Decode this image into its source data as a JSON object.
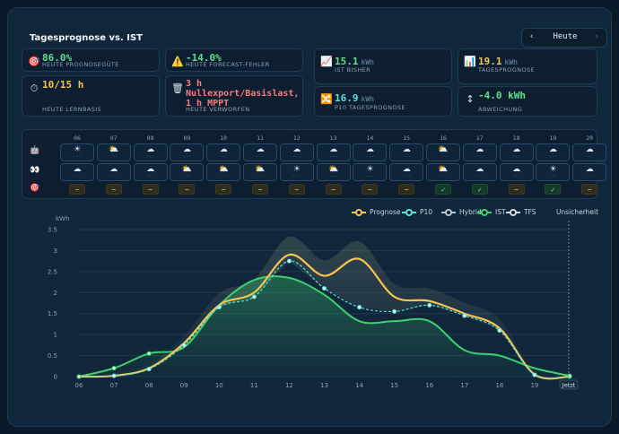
{
  "header": {
    "title": "Tagesprognose vs. IST",
    "day_label": "Heute",
    "prev": "‹",
    "next": "›"
  },
  "cards": [
    {
      "icon": "target-icon",
      "glyph": "🎯",
      "value": "86.0%",
      "unit": "",
      "sub": "HEUTE PROGNOSEGÜTE",
      "color": "#5ee08a"
    },
    {
      "icon": "warning-icon",
      "glyph": "⚠️",
      "value": "-14.0%",
      "unit": "",
      "sub": "HEUTE FORECAST-FEHLER",
      "color": "#5ee08a"
    },
    {
      "icon": "chart-up-icon",
      "glyph": "📈",
      "value": "15.1",
      "unit": "kWh",
      "sub": "IST BISHER",
      "color": "#5ee08a"
    },
    {
      "icon": "chart-line-icon",
      "glyph": "📊",
      "value": "19.1",
      "unit": "kWh",
      "sub": "TAGESPROGNOSE",
      "color": "#f6c453"
    },
    {
      "icon": "stopwatch-icon",
      "glyph": "⏱",
      "value": "10/15 h",
      "unit": "",
      "sub": "HEUTE LERNBASIS",
      "color": "#f6c453"
    },
    {
      "icon": "trash-icon",
      "glyph": "🗑",
      "value": "3 h Nullexport/Basislast, 1 h MPPT",
      "unit": "",
      "sub": "HEUTE VERWORFEN",
      "color": "#ff7a7a"
    },
    {
      "icon": "shuffle-icon",
      "glyph": "🔀",
      "value": "16.9",
      "unit": "kWh",
      "sub": "P10 TAGESPROGNOSE",
      "color": "#5fe0d8"
    },
    {
      "icon": "swap-vertical-icon",
      "glyph": "↕",
      "value": "-4.0 kWh",
      "unit": "",
      "sub": "ABWEICHUNG",
      "color": "#5ee08a"
    }
  ],
  "weather": {
    "hours": [
      "06",
      "07",
      "08",
      "09",
      "10",
      "11",
      "12",
      "13",
      "14",
      "15",
      "16",
      "17",
      "18",
      "19",
      "20"
    ],
    "row_icons": [
      "robot-icon",
      "eyes-icon",
      "target-icon"
    ],
    "row_glyphs": [
      "🤖",
      "👀",
      "🎯"
    ],
    "row1": [
      "☀",
      "⛅",
      "☁",
      "☁",
      "☁",
      "☁",
      "☁",
      "☁",
      "☁",
      "☁",
      "⛅",
      "☁",
      "☁",
      "☁",
      "☁"
    ],
    "row2": [
      "☁",
      "☁",
      "☁",
      "⛅",
      "⛅",
      "⛅",
      "☀",
      "⛅",
      "☀",
      "☁",
      "⛅",
      "☁",
      "☁",
      "☀",
      "☁"
    ],
    "accuracy": [
      "~",
      "~",
      "~",
      "~",
      "~",
      "~",
      "~",
      "~",
      "~",
      "~",
      "✓",
      "✓",
      "~",
      "✓",
      "~"
    ]
  },
  "legend": [
    "Prognose",
    "P10",
    "Hybrid",
    "IST",
    "TFS",
    "Unsicherheit"
  ],
  "colors": {
    "prognose": "#f6c453",
    "p10": "#5fe0d8",
    "hybrid": "#b8c4d0",
    "ist": "#3ecf6e",
    "tfs": "#d0d8e0"
  },
  "chart_data": {
    "type": "line",
    "ylabel": "kWh",
    "ylim": [
      0,
      3.5
    ],
    "yticks": [
      "0",
      "0.5",
      "1",
      "1.5",
      "2",
      "2.5",
      "3",
      "3.5"
    ],
    "categories": [
      "06",
      "07",
      "08",
      "09",
      "10",
      "11",
      "12",
      "13",
      "14",
      "15",
      "16",
      "17",
      "18",
      "19",
      "20"
    ],
    "annotation": "Jetzt",
    "series": [
      {
        "name": "Prognose",
        "values": [
          0,
          0.02,
          0.2,
          0.8,
          1.7,
          2.0,
          2.9,
          2.4,
          2.8,
          1.9,
          1.8,
          1.5,
          1.15,
          0.05,
          0.0
        ]
      },
      {
        "name": "P10",
        "values": [
          0,
          0.02,
          0.18,
          0.75,
          1.65,
          1.9,
          2.75,
          2.1,
          1.65,
          1.55,
          1.7,
          1.45,
          1.1,
          0.04,
          0.0
        ]
      },
      {
        "name": "IST",
        "values": [
          0,
          0.2,
          0.55,
          0.7,
          1.7,
          2.3,
          2.35,
          1.95,
          1.32,
          1.32,
          1.32,
          0.63,
          0.5,
          0.2,
          0.02
        ]
      }
    ]
  }
}
